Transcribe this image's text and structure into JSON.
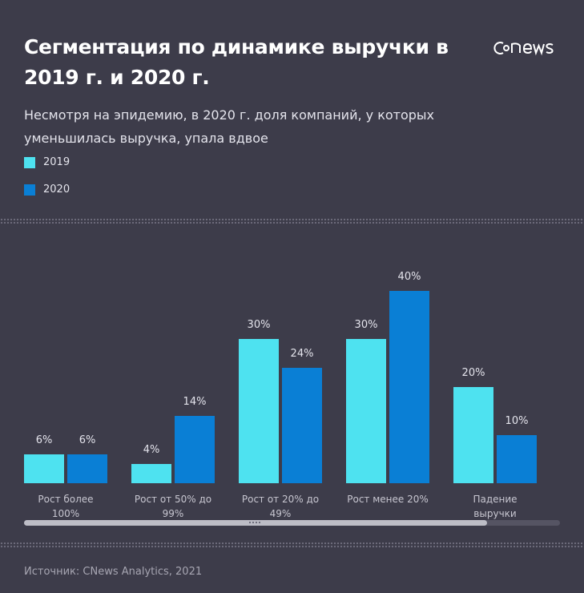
{
  "header": {
    "title": "Сегментация по динамике выручки в 2019 г. и 2020 г.",
    "logo": "CNEWS",
    "subtitle": "Несмотря на эпидемию, в 2020 г. доля компаний, у которых уменьшилась выручка, упала вдвое"
  },
  "footer": {
    "source": "Источник: CNews Analytics, 2021"
  },
  "colors": {
    "background": "#3d3c4a",
    "s2019": "#4ee2f0",
    "s2020": "#0a7fd5"
  },
  "chart_data": {
    "type": "bar",
    "categories": [
      "Рост более 100%",
      "Рост от 50% до 99%",
      "Рост от 20% до 49%",
      "Рост менее 20%",
      "Падение выручки"
    ],
    "series": [
      {
        "name": "2019",
        "values": [
          6,
          4,
          30,
          30,
          20
        ],
        "labels": [
          "6%",
          "4%",
          "30%",
          "30%",
          "20%"
        ]
      },
      {
        "name": "2020",
        "values": [
          6,
          14,
          24,
          40,
          10
        ],
        "labels": [
          "6%",
          "14%",
          "24%",
          "40%",
          "10%"
        ]
      }
    ],
    "ylim": [
      0,
      40
    ],
    "grid": false,
    "legend": "top-left",
    "scrollbar": {
      "visible_fraction": 0.86
    }
  }
}
